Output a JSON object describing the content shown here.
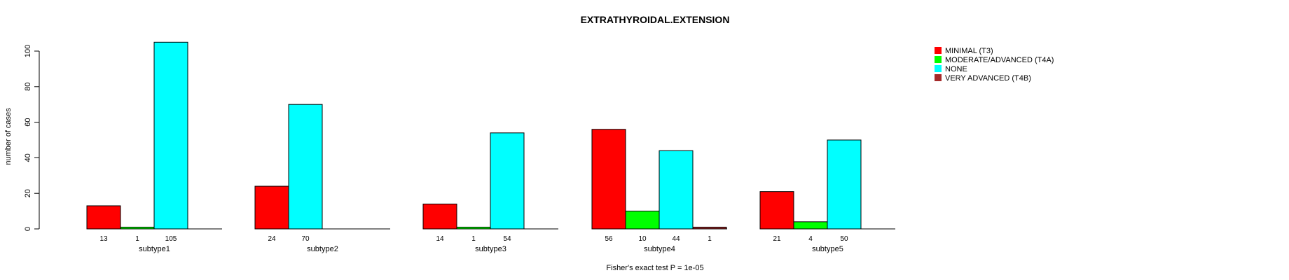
{
  "chart_data": {
    "type": "bar",
    "title": "EXTRATHYROIDAL.EXTENSION",
    "ylabel": "number of cases",
    "xlabel": "",
    "ylim": [
      0,
      105
    ],
    "yticks": [
      0,
      20,
      40,
      60,
      80,
      100
    ],
    "grid": false,
    "legend_position": "top-right",
    "footer": "Fisher's exact test P = 1e-05",
    "categories": [
      "subtype1",
      "subtype2",
      "subtype3",
      "subtype4",
      "subtype5"
    ],
    "series": [
      {
        "name": "MINIMAL (T3)",
        "color": "#ff0000",
        "values": [
          13,
          24,
          14,
          56,
          21
        ]
      },
      {
        "name": "MODERATE/ADVANCED (T4A)",
        "color": "#00ff00",
        "values": [
          1,
          0,
          1,
          10,
          4
        ]
      },
      {
        "name": "NONE",
        "color": "#00ffff",
        "values": [
          105,
          70,
          54,
          44,
          50
        ]
      },
      {
        "name": "VERY ADVANCED (T4B)",
        "color": "#a52a2a",
        "values": [
          0,
          0,
          0,
          1,
          0
        ]
      }
    ]
  }
}
